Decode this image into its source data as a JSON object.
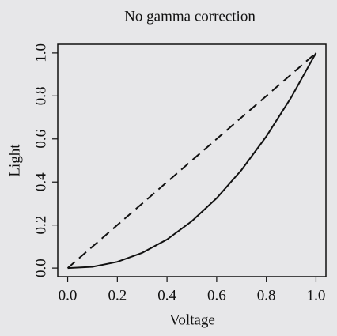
{
  "chart_data": {
    "type": "line",
    "title": "No gamma correction",
    "x_label": "Voltage",
    "y_label": "Light",
    "x": [
      0,
      0.1,
      0.2,
      0.3,
      0.4,
      0.5,
      0.6,
      0.7,
      0.8,
      0.9,
      1
    ],
    "series": [
      {
        "color": "#111111",
        "style": "solid",
        "values": [
          0,
          0.006,
          0.029,
          0.071,
          0.133,
          0.218,
          0.325,
          0.456,
          0.612,
          0.793,
          1
        ]
      },
      {
        "color": "#111111",
        "style": "dashed",
        "values": [
          0,
          0.1,
          0.2,
          0.3,
          0.4,
          0.5,
          0.6,
          0.7,
          0.8,
          0.9,
          1
        ]
      }
    ],
    "xlim": [
      -0.04,
      1.04
    ],
    "ylim": [
      -0.04,
      1.04
    ],
    "xticks": [
      {
        "value": 0,
        "label": "0.0"
      },
      0.2,
      0.4,
      0.6,
      0.8,
      {
        "value": 1,
        "label": "1.0"
      }
    ],
    "yticks": [
      {
        "value": 0,
        "label": "0.0"
      },
      0.2,
      0.4,
      0.6,
      0.8,
      {
        "value": 1,
        "label": "1.0"
      }
    ],
    "grid": false
  }
}
